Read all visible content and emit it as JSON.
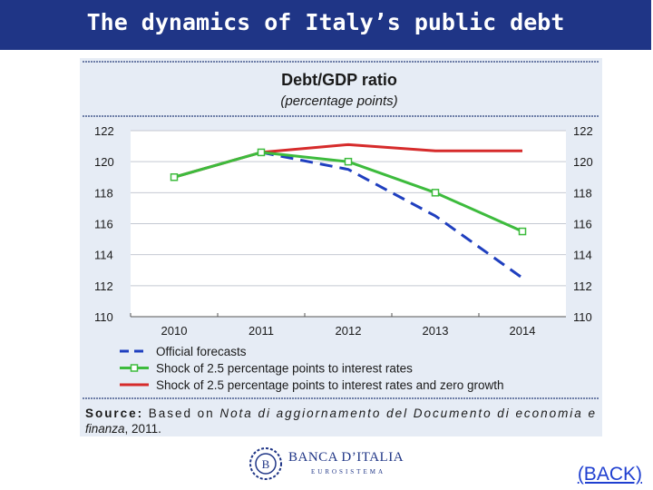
{
  "slide": {
    "title": "The dynamics of Italy’s public debt",
    "back_link": "(BACK)"
  },
  "logo": {
    "name": "BANCA D’ITALIA",
    "subtitle": "EUROSISTEMA"
  },
  "colors": {
    "title_bar": "#1f3586",
    "panel": "#e6ecf5",
    "official": "#1f3fbf",
    "shock_rates": "#3dbb3d",
    "shock_rates_growth": "#d62b2b"
  },
  "chart_data": {
    "type": "line",
    "title": "Debt/GDP ratio",
    "subtitle": "(percentage points)",
    "x": [
      2010,
      2011,
      2012,
      2013,
      2014
    ],
    "ylim": [
      110,
      122
    ],
    "yticks": [
      122,
      120,
      118,
      116,
      114,
      112,
      110
    ],
    "grid": true,
    "legend_position": "bottom",
    "series": [
      {
        "name": "Official forecasts",
        "style": "dashed",
        "color": "#1f3fbf",
        "values": [
          119.0,
          120.6,
          119.5,
          116.5,
          112.5
        ]
      },
      {
        "name": "Shock of 2.5 percentage points to interest rates",
        "style": "solid-square-markers",
        "color": "#3dbb3d",
        "values": [
          119.0,
          120.6,
          120.0,
          118.0,
          115.5
        ]
      },
      {
        "name": "Shock of 2.5 percentage points to interest rates and zero growth",
        "style": "solid",
        "color": "#d62b2b",
        "values": [
          119.0,
          120.6,
          121.1,
          120.7,
          120.7
        ]
      }
    ],
    "source_label": "Source:",
    "source_text_1": " Based on ",
    "source_italic": "Nota di aggiornamento del Documento di economia e",
    "source_line2_italic": "finanza",
    "source_line2_rest": ", 2011."
  }
}
